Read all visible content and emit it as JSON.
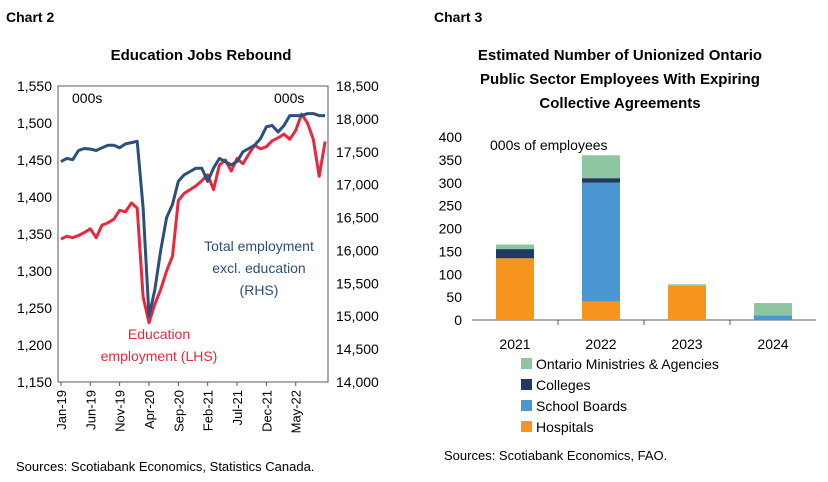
{
  "colors": {
    "blue_line": "#2c4f7c",
    "red_line": "#e8283c",
    "hospitals": "#f7941d",
    "school_boards": "#4a97d2",
    "colleges": "#1f3a66",
    "ministries": "#8dc5a0",
    "text": "#1a1a1a",
    "gridline": "#d9d9d9"
  },
  "chart_data": [
    {
      "type": "line",
      "chart_label": "Chart 2",
      "title": "Education Jobs Rebound",
      "left_unit": "000s",
      "right_unit": "000s",
      "left_ticks": [
        "1,550",
        "1,500",
        "1,450",
        "1,400",
        "1,350",
        "1,300",
        "1,250",
        "1,200",
        "1,150"
      ],
      "right_ticks": [
        "18,500",
        "18,000",
        "17,500",
        "17,000",
        "16,500",
        "16,000",
        "15,500",
        "15,000",
        "14,500",
        "14,000"
      ],
      "left_range": [
        1150,
        1550
      ],
      "right_range": [
        14000,
        18500
      ],
      "x_ticks": [
        "Jan-19",
        "Jun-19",
        "Nov-19",
        "Apr-20",
        "Sep-20",
        "Feb-21",
        "Jul-21",
        "Dec-21",
        "May-22"
      ],
      "x_months_total": 46,
      "series": [
        {
          "name": "Total employment excl. education (RHS)",
          "name_lines": [
            "Total employment",
            "excl. education",
            "(RHS)"
          ],
          "axis": "right",
          "values": [
            17350,
            17400,
            17380,
            17520,
            17550,
            17540,
            17520,
            17560,
            17600,
            17600,
            17560,
            17620,
            17640,
            17660,
            16650,
            15000,
            15400,
            16000,
            16500,
            16700,
            17050,
            17150,
            17200,
            17250,
            17250,
            17050,
            17250,
            17400,
            17350,
            17300,
            17350,
            17500,
            17550,
            17600,
            17700,
            17880,
            17900,
            17800,
            17900,
            18050,
            18050,
            18050,
            18080,
            18080,
            18050,
            18050
          ]
        },
        {
          "name": "Education employment (LHS)",
          "name_lines": [
            "Education",
            "employment (LHS)"
          ],
          "axis": "left",
          "values": [
            1343,
            1347,
            1345,
            1348,
            1352,
            1357,
            1345,
            1362,
            1365,
            1370,
            1382,
            1380,
            1392,
            1385,
            1265,
            1230,
            1255,
            1275,
            1300,
            1320,
            1395,
            1405,
            1410,
            1415,
            1422,
            1430,
            1410,
            1443,
            1450,
            1435,
            1452,
            1445,
            1458,
            1470,
            1465,
            1468,
            1476,
            1480,
            1485,
            1478,
            1490,
            1512,
            1500,
            1478,
            1428,
            1475
          ]
        }
      ],
      "source": "Sources: Scotiabank Economics, Statistics Canada."
    },
    {
      "type": "bar",
      "stacked": true,
      "chart_label": "Chart 3",
      "title_lines": [
        "Estimated Number of Unionized Ontario",
        "Public Sector Employees With Expiring",
        "Collective Agreements"
      ],
      "unit": "000s of employees",
      "y_ticks": [
        "400",
        "350",
        "300",
        "250",
        "200",
        "150",
        "100",
        "50",
        "0"
      ],
      "ylim": [
        0,
        400
      ],
      "categories": [
        "2021",
        "2022",
        "2023",
        "2024"
      ],
      "series": [
        {
          "name": "Hospitals",
          "values": [
            135,
            40,
            75,
            0
          ]
        },
        {
          "name": "School Boards",
          "values": [
            0,
            260,
            0,
            10
          ]
        },
        {
          "name": "Colleges",
          "values": [
            20,
            10,
            0,
            0
          ]
        },
        {
          "name": "Ontario Ministries & Agencies",
          "values": [
            10,
            50,
            3,
            27
          ]
        }
      ],
      "legend_order": [
        "Ontario Ministries & Agencies",
        "Colleges",
        "School Boards",
        "Hospitals"
      ],
      "source": "Sources: Scotiabank Economics, FAO."
    }
  ]
}
